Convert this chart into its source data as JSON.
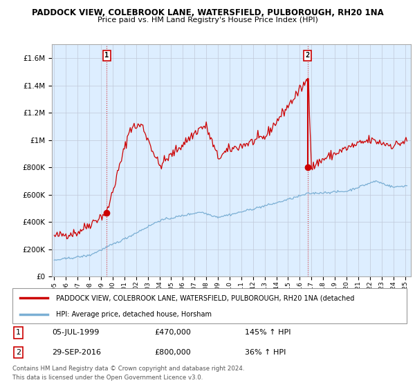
{
  "title1": "PADDOCK VIEW, COLEBROOK LANE, WATERSFIELD, PULBOROUGH, RH20 1NA",
  "title2": "Price paid vs. HM Land Registry's House Price Index (HPI)",
  "legend_red": "PADDOCK VIEW, COLEBROOK LANE, WATERSFIELD, PULBOROUGH, RH20 1NA (detached",
  "legend_blue": "HPI: Average price, detached house, Horsham",
  "sale1_date": "05-JUL-1999",
  "sale1_price": 470000,
  "sale1_hpi_pct": "145% ↑ HPI",
  "sale2_date": "29-SEP-2016",
  "sale2_price": 800000,
  "sale2_hpi_pct": "36% ↑ HPI",
  "footnote1": "Contains HM Land Registry data © Crown copyright and database right 2024.",
  "footnote2": "This data is licensed under the Open Government Licence v3.0.",
  "ylim_max": 1700000,
  "red_color": "#cc0000",
  "blue_color": "#7bafd4",
  "marker_color": "#cc0000",
  "bg_color": "#ddeeff",
  "grid_color": "#c0c8d8"
}
